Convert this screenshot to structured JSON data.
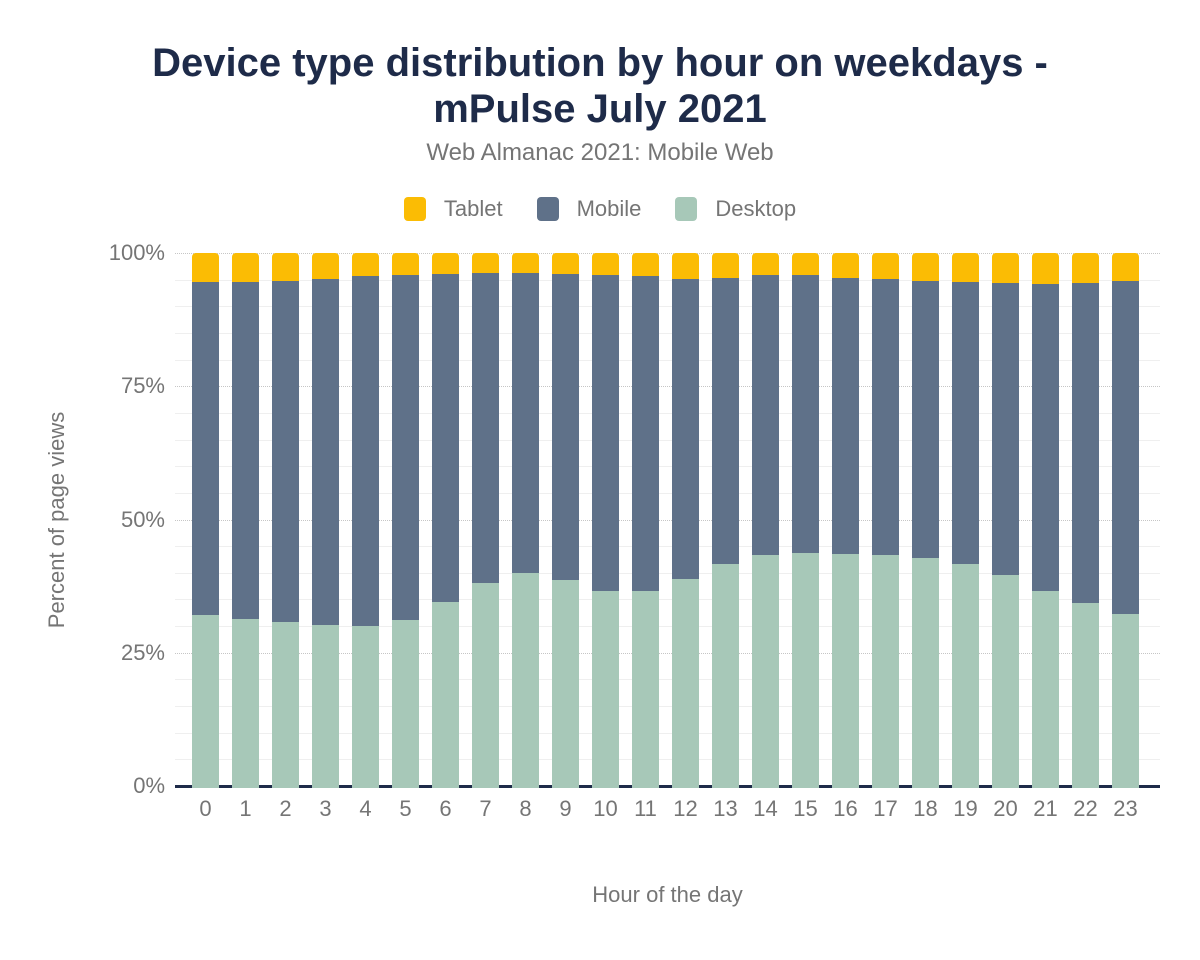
{
  "chart_data": {
    "type": "bar",
    "stacked": true,
    "title": "Device type distribution by hour on weekdays - mPulse July 2021",
    "title_lines": [
      "Device type distribution by hour on weekdays -",
      "mPulse July 2021"
    ],
    "subtitle": "Web Almanac 2021: Mobile Web",
    "xlabel": "Hour of the day",
    "ylabel": "Percent of page views",
    "categories": [
      "0",
      "1",
      "2",
      "3",
      "4",
      "5",
      "6",
      "7",
      "8",
      "9",
      "10",
      "11",
      "12",
      "13",
      "14",
      "15",
      "16",
      "17",
      "18",
      "19",
      "20",
      "21",
      "22",
      "23"
    ],
    "ylim": [
      0,
      100
    ],
    "y_tick_values": [
      0,
      25,
      50,
      75,
      100
    ],
    "y_tick_labels": [
      "0%",
      "25%",
      "50%",
      "75%",
      "100%"
    ],
    "grid": {
      "major_interval": 25,
      "minor_interval": 5,
      "grid_on": true
    },
    "legend_position": "top",
    "legend_order": [
      "Tablet",
      "Mobile",
      "Desktop"
    ],
    "series": [
      {
        "name": "Desktop",
        "color": "#a7c8b8",
        "values": [
          32.0,
          31.3,
          30.8,
          30.2,
          30.0,
          31.1,
          34.6,
          38.1,
          39.9,
          38.7,
          36.5,
          36.6,
          38.9,
          41.7,
          43.4,
          43.7,
          43.6,
          43.4,
          42.7,
          41.7,
          39.5,
          36.5,
          34.3,
          32.3
        ]
      },
      {
        "name": "Mobile",
        "color": "#5f7189",
        "values": [
          62.5,
          63.2,
          63.9,
          65.0,
          65.6,
          64.7,
          61.4,
          58.1,
          56.4,
          57.3,
          59.3,
          59.0,
          56.2,
          53.6,
          52.4,
          52.1,
          51.8,
          51.8,
          52.1,
          52.8,
          54.8,
          57.6,
          60.0,
          62.4
        ]
      },
      {
        "name": "Tablet",
        "color": "#fbbc04",
        "values": [
          5.5,
          5.5,
          5.3,
          4.8,
          4.4,
          4.2,
          4.0,
          3.8,
          3.7,
          4.0,
          4.2,
          4.4,
          4.9,
          4.7,
          4.2,
          4.2,
          4.6,
          4.8,
          5.2,
          5.5,
          5.7,
          5.9,
          5.7,
          5.3
        ]
      }
    ]
  },
  "colors": {
    "title_text": "#1e2b49",
    "muted_text": "#757575",
    "axis_line": "#1e2b49",
    "major_gridline": "#c6c6c6",
    "minor_gridline": "#efefef",
    "background": "#ffffff",
    "tablet": "#fbbc04",
    "mobile": "#5f7189",
    "desktop": "#a7c8b8"
  }
}
